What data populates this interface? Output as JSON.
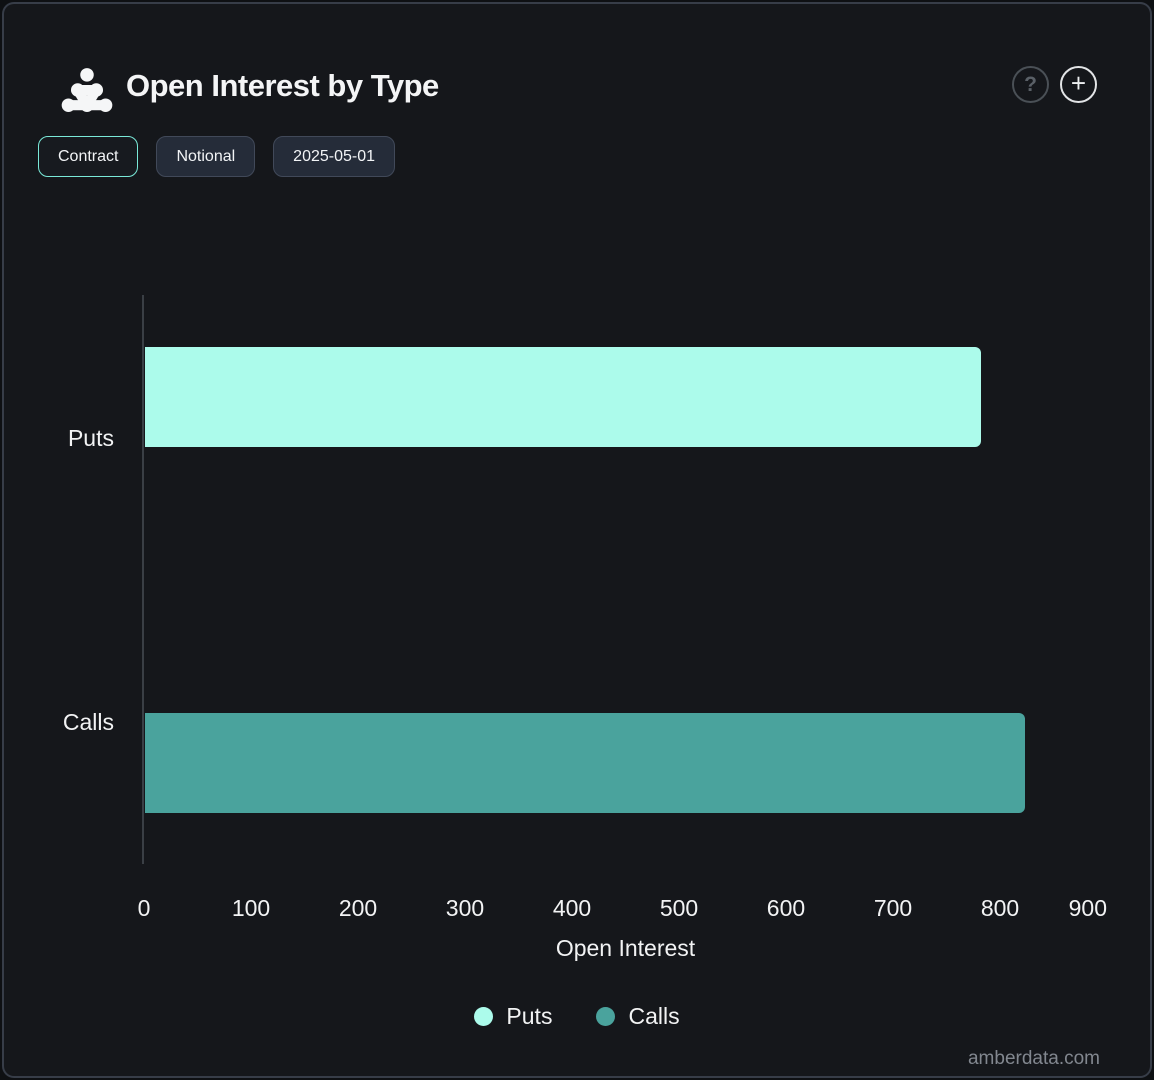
{
  "header": {
    "title": "Open Interest by Type",
    "help_glyph": "?",
    "add_glyph": "+"
  },
  "toolbar": {
    "buttons": [
      {
        "label": "Contract",
        "active": true
      },
      {
        "label": "Notional",
        "active": false
      },
      {
        "label": "2025-05-01",
        "active": false
      }
    ]
  },
  "chart_data": {
    "type": "bar",
    "orientation": "horizontal",
    "title": "Open Interest by Type",
    "categories": [
      "Puts",
      "Calls"
    ],
    "series": [
      {
        "name": "Puts",
        "value": 781,
        "color": "#acfbeb"
      },
      {
        "name": "Calls",
        "value": 822,
        "color": "#4aa39d"
      }
    ],
    "xlabel": "Open Interest",
    "ylabel": "",
    "xlim": [
      0,
      900
    ],
    "xticks": [
      0,
      100,
      200,
      300,
      400,
      500,
      600,
      700,
      800,
      900
    ],
    "grid": false,
    "legend_position": "bottom"
  },
  "colors": {
    "background": "#15171b",
    "puts_bar": "#acfbeb",
    "calls_bar": "#4aa39d",
    "active_button_border": "#7ae9d8",
    "axis_line": "#3a3f45",
    "text": "#f2f3f4",
    "watermark_text": "#82878f"
  },
  "watermark": "amberdata.com"
}
